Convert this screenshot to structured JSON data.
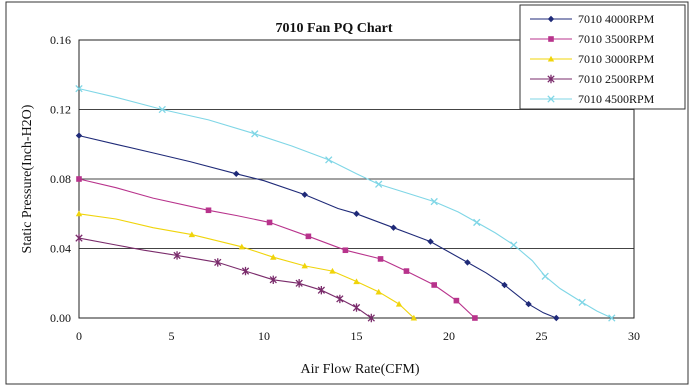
{
  "chart_data": {
    "type": "line",
    "title": "7010  Fan PQ Chart",
    "xlabel": "Air Flow Rate(CFM)",
    "ylabel": "Static Pressure(Inch-H2O)",
    "xlim": [
      0,
      30
    ],
    "ylim": [
      0,
      0.16
    ],
    "xticks": [
      0,
      5,
      10,
      15,
      20,
      25,
      30
    ],
    "yticks": [
      0,
      0.04,
      0.08,
      0.12,
      0.16
    ],
    "xtick_labels": [
      "0",
      "5",
      "10",
      "15",
      "20",
      "25",
      "30"
    ],
    "ytick_labels": [
      "0.00",
      "0.04",
      "0.08",
      "0.12",
      "0.16"
    ],
    "grid": "horizontal",
    "legend_position": "top-right",
    "series": [
      {
        "name": "7010  4000RPM",
        "color": "#1f2a78",
        "marker": "diamond",
        "x": [
          0,
          8.5,
          12.2,
          15,
          17,
          19,
          21,
          23,
          24.3,
          25.8
        ],
        "y": [
          0.105,
          0.083,
          0.071,
          0.06,
          0.052,
          0.044,
          0.032,
          0.019,
          0.008,
          0
        ],
        "curve_x": [
          0,
          2,
          4,
          6,
          8.5,
          10,
          12.2,
          14,
          15,
          17,
          18,
          19,
          20,
          21,
          22,
          23,
          24.3,
          25.1,
          25.8
        ],
        "curve_y": [
          0.105,
          0.1,
          0.095,
          0.09,
          0.083,
          0.079,
          0.071,
          0.063,
          0.06,
          0.052,
          0.048,
          0.044,
          0.038,
          0.032,
          0.026,
          0.019,
          0.008,
          0.003,
          0
        ]
      },
      {
        "name": "7010  3500RPM",
        "color": "#b8338c",
        "marker": "square",
        "x": [
          0,
          7,
          10.3,
          12.4,
          14.4,
          16.3,
          17.7,
          19.2,
          20.4,
          21.4
        ],
        "y": [
          0.08,
          0.062,
          0.055,
          0.047,
          0.039,
          0.034,
          0.027,
          0.019,
          0.01,
          0
        ],
        "curve_x": [
          0,
          2,
          4,
          7,
          8.5,
          10.3,
          12.4,
          14.4,
          16.3,
          17.7,
          19.2,
          20.4,
          21.4
        ],
        "curve_y": [
          0.08,
          0.075,
          0.069,
          0.062,
          0.059,
          0.055,
          0.047,
          0.039,
          0.034,
          0.027,
          0.019,
          0.01,
          0
        ]
      },
      {
        "name": "7010  3000RPM",
        "color": "#f0d40a",
        "marker": "triangle",
        "x": [
          0,
          6.1,
          8.8,
          10.5,
          12.2,
          13.7,
          15,
          16.2,
          17.3,
          18.1
        ],
        "y": [
          0.06,
          0.048,
          0.041,
          0.035,
          0.03,
          0.027,
          0.021,
          0.015,
          0.008,
          0
        ],
        "curve_x": [
          0,
          2,
          4,
          6.1,
          8.8,
          10.5,
          12.2,
          13.7,
          15,
          16.2,
          17.3,
          18.1
        ],
        "curve_y": [
          0.06,
          0.057,
          0.052,
          0.048,
          0.041,
          0.035,
          0.03,
          0.027,
          0.021,
          0.015,
          0.008,
          0
        ]
      },
      {
        "name": "7010  2500RPM",
        "color": "#7a2b6b",
        "marker": "star",
        "x": [
          0,
          5.3,
          7.5,
          9,
          10.5,
          11.9,
          13.1,
          14.1,
          15,
          15.8
        ],
        "y": [
          0.046,
          0.036,
          0.032,
          0.027,
          0.022,
          0.02,
          0.016,
          0.011,
          0.006,
          0
        ],
        "curve_x": [
          0,
          2,
          3.5,
          5.3,
          7.5,
          9,
          10.5,
          11.9,
          13.1,
          14.1,
          15,
          15.8
        ],
        "curve_y": [
          0.046,
          0.042,
          0.039,
          0.036,
          0.032,
          0.027,
          0.022,
          0.02,
          0.016,
          0.011,
          0.006,
          0
        ]
      },
      {
        "name": "7010   4500RPM",
        "color": "#7fd6e6",
        "marker": "x",
        "x": [
          0,
          4.5,
          9.5,
          13.5,
          16.2,
          19.2,
          21.5,
          23.5,
          25.2,
          27.2,
          28.8
        ],
        "y": [
          0.132,
          0.12,
          0.106,
          0.091,
          0.077,
          0.067,
          0.055,
          0.042,
          0.024,
          0.009,
          0
        ],
        "curve_x": [
          0,
          2,
          4.5,
          7,
          9.5,
          11.5,
          13.5,
          15,
          16.2,
          18,
          19.2,
          20.5,
          21.5,
          22.5,
          23.5,
          24.5,
          25.2,
          26,
          27.2,
          28,
          28.8
        ],
        "curve_y": [
          0.132,
          0.127,
          0.12,
          0.114,
          0.106,
          0.099,
          0.091,
          0.083,
          0.077,
          0.071,
          0.067,
          0.061,
          0.055,
          0.049,
          0.042,
          0.033,
          0.024,
          0.017,
          0.009,
          0.004,
          0
        ]
      }
    ]
  }
}
